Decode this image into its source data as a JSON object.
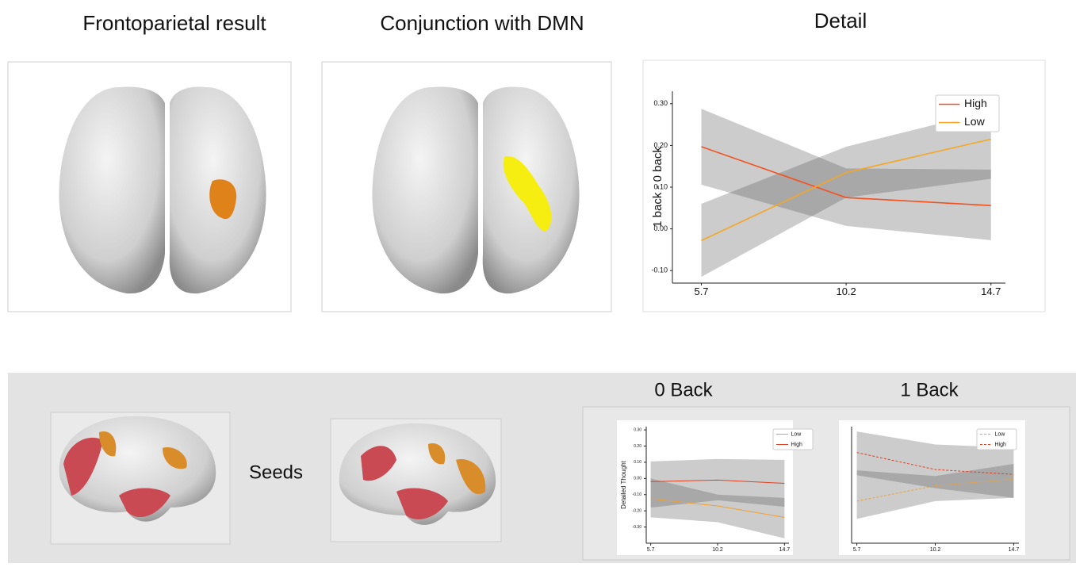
{
  "panel_titles": {
    "frontoparietal": "Frontoparietal result",
    "conjunction": "Conjunction with DMN",
    "seeds": "Seeds"
  },
  "chart_data": [
    {
      "type": "line",
      "title": "Detail",
      "y_label": "1 back - 0 back",
      "x": [
        5.7,
        10.2,
        14.7
      ],
      "xlim": [
        4.8,
        15.15
      ],
      "xticks": [
        5.7,
        10.2,
        14.7
      ],
      "ylim": [
        -0.13,
        0.33
      ],
      "yticks": [
        {
          "value": -0.1,
          "label": "-0.10"
        },
        {
          "value": 0,
          "label": "0.00"
        },
        {
          "value": 0.1,
          "label": "0.10"
        },
        {
          "value": 0.2,
          "label": "0.20"
        },
        {
          "value": 0.3,
          "label": "0.30"
        }
      ],
      "legend": "upper right",
      "series": [
        {
          "name": "High",
          "color": "#f4511e",
          "dashed": false,
          "values": [
            0.197,
            0.075,
            0.056
          ],
          "lower": [
            0.106,
            0.007,
            -0.027
          ],
          "upper": [
            0.288,
            0.145,
            0.142
          ]
        },
        {
          "name": "Low",
          "color": "#f5a623",
          "dashed": false,
          "values": [
            -0.028,
            0.135,
            0.215
          ],
          "lower": [
            -0.115,
            0.075,
            0.12
          ],
          "upper": [
            0.06,
            0.197,
            0.283
          ]
        }
      ]
    },
    {
      "type": "line",
      "title": "0 Back",
      "y_label": "Detailed Thought",
      "x": [
        5.7,
        10.2,
        14.7
      ],
      "xlim": [
        5.4,
        15.0
      ],
      "xticks": [
        5.7,
        10.2,
        14.7
      ],
      "ylim": [
        -0.4,
        0.32
      ],
      "yticks": [
        {
          "value": -0.3,
          "label": "-0.30"
        },
        {
          "value": -0.2,
          "label": "-0.20"
        },
        {
          "value": -0.1,
          "label": "-0.10"
        },
        {
          "value": 0,
          "label": "0.00"
        },
        {
          "value": 0.1,
          "label": "0.10"
        },
        {
          "value": 0.2,
          "label": "0.20"
        },
        {
          "value": 0.3,
          "label": "0.30"
        }
      ],
      "legend": "upper right",
      "series": [
        {
          "name": "Low",
          "color": "#f0a030",
          "dashed": false,
          "values": [
            -0.126,
            -0.17,
            -0.24
          ],
          "lower": [
            -0.24,
            -0.27,
            -0.37
          ],
          "upper": [
            0.0,
            -0.1,
            -0.12
          ]
        },
        {
          "name": "High",
          "color": "#e04020",
          "dashed": false,
          "values": [
            -0.02,
            -0.01,
            -0.03
          ],
          "lower": [
            -0.18,
            -0.135,
            -0.175
          ],
          "upper": [
            0.105,
            0.12,
            0.115
          ]
        }
      ]
    },
    {
      "type": "line",
      "title": "1 Back",
      "x": [
        5.7,
        10.2,
        14.7
      ],
      "xlim": [
        5.4,
        15.0
      ],
      "xticks": [
        5.7,
        10.2,
        14.7
      ],
      "ylim": [
        -0.4,
        0.32
      ],
      "legend": "upper right",
      "series": [
        {
          "name": "Low",
          "color": "#f0a030",
          "dashed": true,
          "values": [
            -0.14,
            -0.045,
            -0.005
          ],
          "lower": [
            -0.25,
            -0.14,
            -0.12
          ],
          "upper": [
            0.05,
            0.015,
            0.09
          ]
        },
        {
          "name": "High",
          "color": "#e04020",
          "dashed": true,
          "values": [
            0.16,
            0.055,
            0.025
          ],
          "lower": [
            0.02,
            -0.06,
            -0.12
          ],
          "upper": [
            0.29,
            0.21,
            0.19
          ]
        }
      ]
    }
  ]
}
